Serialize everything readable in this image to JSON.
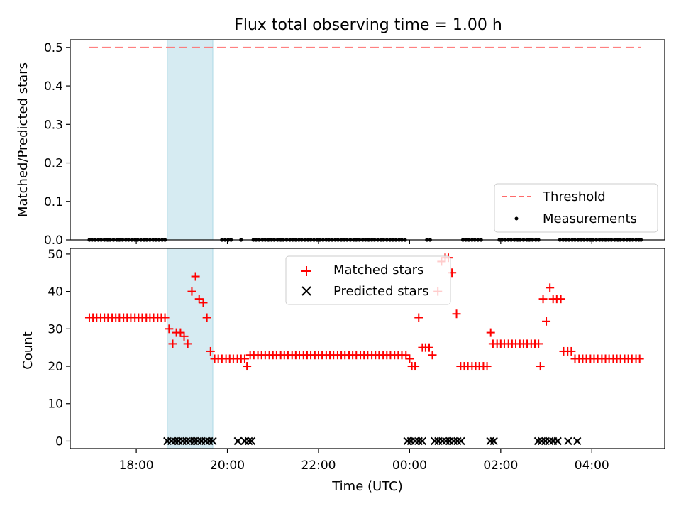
{
  "chart_data": {
    "title": "Flux total observing time = 1.00 h",
    "xlabel": "Time (UTC)",
    "x_ticks": [
      "18:00",
      "20:00",
      "22:00",
      "00:00",
      "02:00",
      "04:00"
    ],
    "x_range_hours": [
      16.55,
      29.6
    ],
    "highlight_span_hours": [
      18.68,
      19.68
    ],
    "panels": [
      {
        "type": "scatter",
        "ylabel": "Matched/Predicted stars",
        "ylim": [
          0,
          0.52
        ],
        "yticks": [
          "0.0",
          "0.1",
          "0.2",
          "0.3",
          "0.4",
          "0.5"
        ],
        "threshold": 0.5,
        "legend": {
          "placement": "lower-right",
          "entries": [
            "Threshold",
            "Measurements"
          ]
        },
        "series": [
          {
            "name": "Measurements",
            "style": "dot",
            "color": "#000000",
            "x_hours": [
              16.97,
              17.03,
              17.1,
              17.17,
              17.23,
              17.3,
              17.37,
              17.43,
              17.5,
              17.57,
              17.63,
              17.7,
              17.77,
              17.83,
              17.9,
              17.97,
              18.03,
              18.1,
              18.17,
              18.23,
              18.3,
              18.37,
              18.43,
              18.5,
              18.57,
              18.63,
              19.88,
              19.95,
              20.02,
              20.08,
              20.3,
              20.57,
              20.63,
              20.7,
              20.77,
              20.83,
              20.9,
              20.97,
              21.03,
              21.1,
              21.17,
              21.23,
              21.3,
              21.37,
              21.43,
              21.5,
              21.57,
              21.63,
              21.7,
              21.77,
              21.83,
              21.9,
              21.97,
              22.03,
              22.1,
              22.17,
              22.23,
              22.3,
              22.37,
              22.43,
              22.5,
              22.57,
              22.63,
              22.7,
              22.77,
              22.83,
              22.9,
              22.97,
              23.03,
              23.1,
              23.17,
              23.23,
              23.3,
              23.37,
              23.43,
              23.5,
              23.57,
              23.63,
              23.7,
              23.77,
              23.83,
              23.9,
              24.38,
              24.45,
              25.17,
              25.23,
              25.3,
              25.37,
              25.43,
              25.5,
              25.57,
              25.97,
              26.03,
              26.1,
              26.17,
              26.23,
              26.3,
              26.37,
              26.43,
              26.5,
              26.57,
              26.63,
              26.7,
              26.77,
              26.83,
              27.3,
              27.37,
              27.43,
              27.5,
              27.57,
              27.63,
              27.7,
              27.77,
              27.83,
              27.9,
              27.97,
              28.03,
              28.1,
              28.17,
              28.23,
              28.3,
              28.37,
              28.43,
              28.5,
              28.57,
              28.63,
              28.7,
              28.77,
              28.83,
              28.9,
              28.97,
              29.03,
              29.08
            ],
            "y_value": 0
          }
        ]
      },
      {
        "type": "scatter",
        "ylabel": "Count",
        "ylim": [
          -2,
          51.5
        ],
        "yticks": [
          "0",
          "10",
          "20",
          "30",
          "40",
          "50"
        ],
        "legend": {
          "placement": "upper-center",
          "entries": [
            "Matched stars",
            "Predicted stars"
          ]
        },
        "series": [
          {
            "name": "Matched stars",
            "marker": "+",
            "color": "#ff0000",
            "points": [
              [
                16.97,
                33
              ],
              [
                17.05,
                33
              ],
              [
                17.13,
                33
              ],
              [
                17.22,
                33
              ],
              [
                17.3,
                33
              ],
              [
                17.38,
                33
              ],
              [
                17.47,
                33
              ],
              [
                17.55,
                33
              ],
              [
                17.63,
                33
              ],
              [
                17.72,
                33
              ],
              [
                17.8,
                33
              ],
              [
                17.88,
                33
              ],
              [
                17.97,
                33
              ],
              [
                18.05,
                33
              ],
              [
                18.13,
                33
              ],
              [
                18.22,
                33
              ],
              [
                18.3,
                33
              ],
              [
                18.38,
                33
              ],
              [
                18.47,
                33
              ],
              [
                18.55,
                33
              ],
              [
                18.63,
                33
              ],
              [
                18.72,
                30
              ],
              [
                18.8,
                26
              ],
              [
                18.88,
                29
              ],
              [
                18.97,
                29
              ],
              [
                19.05,
                28
              ],
              [
                19.13,
                26
              ],
              [
                19.22,
                40
              ],
              [
                19.3,
                44
              ],
              [
                19.38,
                38
              ],
              [
                19.47,
                37
              ],
              [
                19.55,
                33
              ],
              [
                19.63,
                24
              ],
              [
                19.72,
                22
              ],
              [
                19.8,
                22
              ],
              [
                19.88,
                22
              ],
              [
                19.97,
                22
              ],
              [
                20.05,
                22
              ],
              [
                20.13,
                22
              ],
              [
                20.22,
                22
              ],
              [
                20.3,
                22
              ],
              [
                20.38,
                22
              ],
              [
                20.43,
                20
              ],
              [
                20.5,
                23
              ],
              [
                20.58,
                23
              ],
              [
                20.67,
                23
              ],
              [
                20.75,
                23
              ],
              [
                20.83,
                23
              ],
              [
                20.92,
                23
              ],
              [
                21.0,
                23
              ],
              [
                21.08,
                23
              ],
              [
                21.17,
                23
              ],
              [
                21.25,
                23
              ],
              [
                21.33,
                23
              ],
              [
                21.42,
                23
              ],
              [
                21.5,
                23
              ],
              [
                21.58,
                23
              ],
              [
                21.67,
                23
              ],
              [
                21.75,
                23
              ],
              [
                21.83,
                23
              ],
              [
                21.92,
                23
              ],
              [
                22.0,
                23
              ],
              [
                22.08,
                23
              ],
              [
                22.17,
                23
              ],
              [
                22.25,
                23
              ],
              [
                22.33,
                23
              ],
              [
                22.42,
                23
              ],
              [
                22.5,
                23
              ],
              [
                22.58,
                23
              ],
              [
                22.67,
                23
              ],
              [
                22.75,
                23
              ],
              [
                22.83,
                23
              ],
              [
                22.92,
                23
              ],
              [
                23.0,
                23
              ],
              [
                23.08,
                23
              ],
              [
                23.17,
                23
              ],
              [
                23.25,
                23
              ],
              [
                23.33,
                23
              ],
              [
                23.42,
                23
              ],
              [
                23.5,
                23
              ],
              [
                23.58,
                23
              ],
              [
                23.67,
                23
              ],
              [
                23.75,
                23
              ],
              [
                23.83,
                23
              ],
              [
                23.92,
                23
              ],
              [
                24.0,
                22
              ],
              [
                24.05,
                20
              ],
              [
                24.12,
                20
              ],
              [
                24.2,
                33
              ],
              [
                24.28,
                25
              ],
              [
                24.35,
                25
              ],
              [
                24.43,
                25
              ],
              [
                24.5,
                23
              ],
              [
                24.62,
                40
              ],
              [
                24.7,
                48
              ],
              [
                24.78,
                49
              ],
              [
                24.85,
                49
              ],
              [
                24.93,
                45
              ],
              [
                25.03,
                34
              ],
              [
                25.12,
                20
              ],
              [
                25.2,
                20
              ],
              [
                25.28,
                20
              ],
              [
                25.37,
                20
              ],
              [
                25.45,
                20
              ],
              [
                25.53,
                20
              ],
              [
                25.62,
                20
              ],
              [
                25.7,
                20
              ],
              [
                25.78,
                29
              ],
              [
                25.83,
                26
              ],
              [
                25.92,
                26
              ],
              [
                26.0,
                26
              ],
              [
                26.08,
                26
              ],
              [
                26.17,
                26
              ],
              [
                26.25,
                26
              ],
              [
                26.33,
                26
              ],
              [
                26.42,
                26
              ],
              [
                26.5,
                26
              ],
              [
                26.58,
                26
              ],
              [
                26.67,
                26
              ],
              [
                26.75,
                26
              ],
              [
                26.83,
                26
              ],
              [
                26.87,
                20
              ],
              [
                26.93,
                38
              ],
              [
                27.0,
                32
              ],
              [
                27.08,
                41
              ],
              [
                27.15,
                38
              ],
              [
                27.23,
                38
              ],
              [
                27.32,
                38
              ],
              [
                27.38,
                24
              ],
              [
                27.47,
                24
              ],
              [
                27.55,
                24
              ],
              [
                27.63,
                22
              ],
              [
                27.72,
                22
              ],
              [
                27.8,
                22
              ],
              [
                27.88,
                22
              ],
              [
                27.97,
                22
              ],
              [
                28.05,
                22
              ],
              [
                28.13,
                22
              ],
              [
                28.22,
                22
              ],
              [
                28.3,
                22
              ],
              [
                28.38,
                22
              ],
              [
                28.47,
                22
              ],
              [
                28.55,
                22
              ],
              [
                28.63,
                22
              ],
              [
                28.72,
                22
              ],
              [
                28.8,
                22
              ],
              [
                28.88,
                22
              ],
              [
                28.97,
                22
              ],
              [
                29.05,
                22
              ]
            ]
          },
          {
            "name": "Predicted stars",
            "marker": "x",
            "color": "#000000",
            "x_hours": [
              18.68,
              18.77,
              18.85,
              18.93,
              19.02,
              19.1,
              19.18,
              19.27,
              19.35,
              19.43,
              19.52,
              19.6,
              19.68,
              20.23,
              20.38,
              20.47,
              20.53,
              23.95,
              24.03,
              24.12,
              24.2,
              24.28,
              24.55,
              24.63,
              24.72,
              24.8,
              24.88,
              24.97,
              25.05,
              25.13,
              25.77,
              25.85,
              26.82,
              26.9,
              26.98,
              27.07,
              27.15,
              27.25,
              27.48,
              27.68
            ],
            "y_value": 0
          }
        ]
      }
    ]
  }
}
